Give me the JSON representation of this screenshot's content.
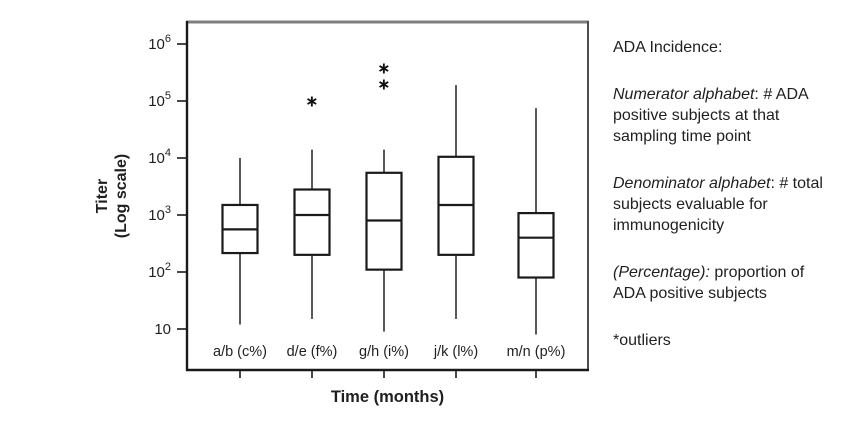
{
  "chart_data": {
    "type": "boxplot",
    "title": "",
    "xlabel": "Time (months)",
    "ylabel": [
      "Titer",
      "(Log scale)"
    ],
    "y_scale": "log10",
    "ylim": [
      8,
      1000000
    ],
    "grid": false,
    "legend_position": "none",
    "outlier_marker": "*",
    "y_ticks": [
      {
        "base": "10",
        "exp": "6",
        "value": 1000000
      },
      {
        "base": "10",
        "exp": "5",
        "value": 100000
      },
      {
        "base": "10",
        "exp": "4",
        "value": 10000
      },
      {
        "base": "10",
        "exp": "3",
        "value": 1000
      },
      {
        "base": "10",
        "exp": "2",
        "value": 100
      },
      {
        "base": "10",
        "exp": "",
        "value": 10
      }
    ],
    "categories": [
      "a/b (c%)",
      "d/e (f%)",
      "g/h (i%)",
      "j/k (l%)",
      "m/n (p%)"
    ],
    "series": [
      {
        "name": "a/b (c%)",
        "whisker_low": 12,
        "q1": 215,
        "median": 560,
        "q3": 1500,
        "whisker_high": 10000,
        "outliers": []
      },
      {
        "name": "d/e (f%)",
        "whisker_low": 15,
        "q1": 200,
        "median": 1000,
        "q3": 2800,
        "whisker_high": 14000,
        "outliers": [
          100000
        ]
      },
      {
        "name": "g/h (i%)",
        "whisker_low": 9,
        "q1": 110,
        "median": 800,
        "q3": 5500,
        "whisker_high": 14000,
        "outliers": [
          200000,
          380000
        ]
      },
      {
        "name": "j/k (l%)",
        "whisker_low": 15,
        "q1": 200,
        "median": 1500,
        "q3": 10500,
        "whisker_high": 190000,
        "outliers": []
      },
      {
        "name": "m/n (p%)",
        "whisker_low": 8,
        "q1": 80,
        "median": 400,
        "q3": 1080,
        "whisker_high": 75000,
        "outliers": []
      }
    ]
  },
  "notes": {
    "paragraphs": [
      {
        "lead": "",
        "rest": "ADA Incidence:"
      },
      {
        "lead": "Numerator alphabet",
        "rest": ": # ADA positive  subjects at that sampling time point"
      },
      {
        "lead": "Denominator alphabet",
        "rest": ": # total subjects evaluable for immunogenicity"
      },
      {
        "lead": "(Percentage):",
        "rest": " proportion of ADA positive subjects"
      },
      {
        "lead": "",
        "rest": "*outliers"
      }
    ]
  },
  "colors": {
    "box_stroke": "#1a1a1a",
    "whisker": "#2e2e2e",
    "frame_gray": "#7f7f7f",
    "frame_dark": "#1a1a1a",
    "text": "#1f1f1f"
  }
}
